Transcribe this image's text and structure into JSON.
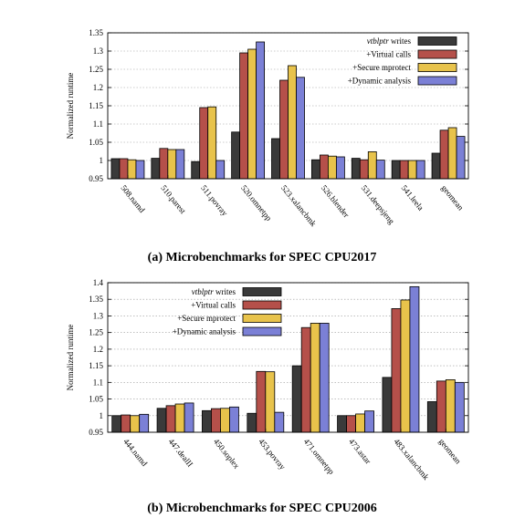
{
  "chart_data": [
    {
      "type": "bar",
      "caption": "(a) Microbenchmarks for SPEC CPU2017",
      "ylabel": "Normalized runtime",
      "ylim": [
        0.95,
        1.35
      ],
      "yticks": [
        "0.95",
        "1",
        "1.05",
        "1.1",
        "1.15",
        "1.2",
        "1.25",
        "1.3",
        "1.35"
      ],
      "grid": true,
      "legend_position": "top-right",
      "categories": [
        "508.namd",
        "510.parest",
        "511.povray",
        "520.omnetpp",
        "523.xalancbmk",
        "526.blender",
        "531.deepsjeng",
        "541.leela",
        "geomean"
      ],
      "series": [
        {
          "name": "vtblptr writes",
          "name_italic_part": "vtblptr",
          "name_rest": " writes",
          "color": "#3a3a3a",
          "values": [
            1.005,
            1.006,
            0.997,
            1.078,
            1.06,
            1.002,
            1.006,
            1.0,
            1.02
          ]
        },
        {
          "name": "+Virtual calls",
          "color": "#b5504a",
          "values": [
            1.005,
            1.033,
            1.145,
            1.295,
            1.22,
            1.015,
            1.002,
            1.0,
            1.083
          ]
        },
        {
          "name": "+Secure mprotect",
          "color": "#e8c34b",
          "values": [
            1.002,
            1.03,
            1.147,
            1.305,
            1.26,
            1.012,
            1.024,
            1.0,
            1.09
          ]
        },
        {
          "name": "+Dynamic analysis",
          "color": "#7b80d6",
          "values": [
            1.0,
            1.03,
            1.0,
            1.325,
            1.228,
            1.01,
            1.001,
            1.0,
            1.066
          ]
        }
      ]
    },
    {
      "type": "bar",
      "caption": "(b) Microbenchmarks for SPEC CPU2006",
      "ylabel": "Normalized runtime",
      "ylim": [
        0.95,
        1.4
      ],
      "yticks": [
        "0.95",
        "1",
        "1.05",
        "1.1",
        "1.15",
        "1.2",
        "1.25",
        "1.3",
        "1.35",
        "1.4"
      ],
      "grid": true,
      "legend_position": "top-left",
      "categories": [
        "444.namd",
        "447.dealII",
        "450.soplex",
        "453.povray",
        "471.omnetpp",
        "473.astar",
        "483.xalancbmk",
        "geomean"
      ],
      "series": [
        {
          "name": "vtblptr writes",
          "name_italic_part": "vtblptr",
          "name_rest": " writes",
          "color": "#3a3a3a",
          "values": [
            1.0,
            1.022,
            1.015,
            1.007,
            1.15,
            1.0,
            1.115,
            1.042
          ]
        },
        {
          "name": "+Virtual calls",
          "color": "#b5504a",
          "values": [
            1.002,
            1.03,
            1.021,
            1.133,
            1.265,
            1.0,
            1.322,
            1.104
          ]
        },
        {
          "name": "+Secure mprotect",
          "color": "#e8c34b",
          "values": [
            1.0,
            1.035,
            1.022,
            1.132,
            1.278,
            1.005,
            1.348,
            1.108
          ]
        },
        {
          "name": "+Dynamic analysis",
          "color": "#7b80d6",
          "values": [
            1.004,
            1.038,
            1.026,
            1.01,
            1.278,
            1.014,
            1.388,
            1.1
          ]
        }
      ]
    }
  ]
}
